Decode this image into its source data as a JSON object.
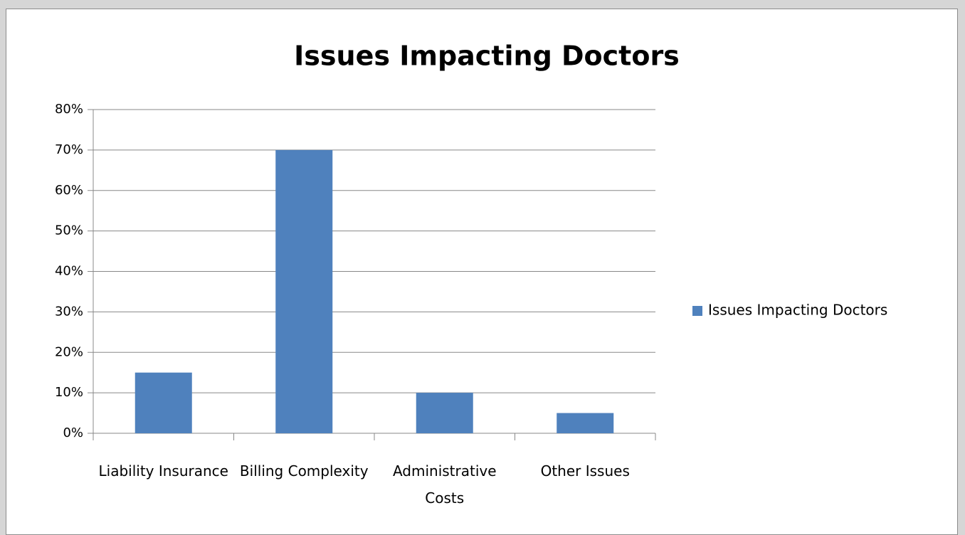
{
  "chart_data": {
    "type": "bar",
    "title": "Issues Impacting Doctors",
    "categories": [
      "Liability Insurance",
      "Billing Complexity",
      "Administrative Costs",
      "Other Issues"
    ],
    "series": [
      {
        "name": "Issues Impacting Doctors",
        "color": "#4f81bd",
        "values": [
          15,
          70,
          10,
          5
        ]
      }
    ],
    "ylim": [
      0,
      80
    ],
    "yticks": [
      {
        "value": 0,
        "label": "0%"
      },
      {
        "value": 10,
        "label": "10%"
      },
      {
        "value": 20,
        "label": "20%"
      },
      {
        "value": 30,
        "label": "30%"
      },
      {
        "value": 40,
        "label": "40%"
      },
      {
        "value": 50,
        "label": "50%"
      },
      {
        "value": 60,
        "label": "60%"
      },
      {
        "value": 70,
        "label": "70%"
      },
      {
        "value": 80,
        "label": "80%"
      }
    ],
    "grid": true,
    "legend": "right"
  }
}
